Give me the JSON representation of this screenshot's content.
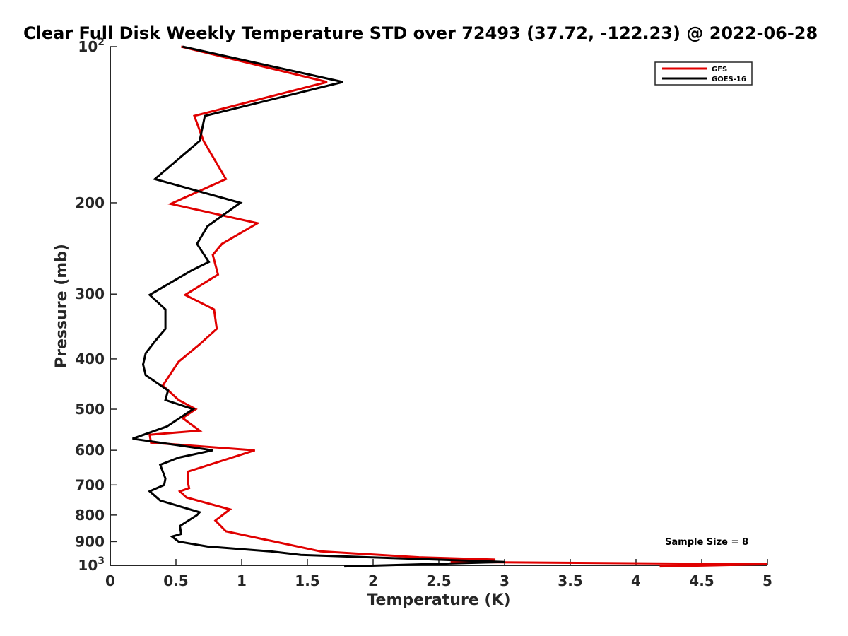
{
  "chart_data": {
    "type": "line",
    "title": "Clear Full Disk Weekly Temperature STD over 72493 (37.72, -122.23) @ 2022-06-28",
    "xlabel": "Temperature (K)",
    "ylabel": "Pressure (mb)",
    "xlim": [
      0,
      5
    ],
    "ylim": [
      100,
      1000
    ],
    "y_scale": "log",
    "y_reversed": true,
    "grid": false,
    "legend_position": "top-right",
    "x_ticks": [
      0,
      0.5,
      1,
      1.5,
      2,
      2.5,
      3,
      3.5,
      4,
      4.5,
      5
    ],
    "x_tick_labels": [
      "0",
      "0.5",
      "1",
      "1.5",
      "2",
      "2.5",
      "3",
      "3.5",
      "4",
      "4.5",
      "5"
    ],
    "y_ticks": [
      100,
      200,
      300,
      400,
      500,
      600,
      700,
      800,
      900,
      1000
    ],
    "y_tick_labels": [
      "10^2",
      "200",
      "300",
      "400",
      "500",
      "600",
      "700",
      "800",
      "900",
      "10^3"
    ],
    "annotation": "Sample Size = 8",
    "series": [
      {
        "name": "GFS",
        "color": "#e00000",
        "x": [
          0.54,
          1.65,
          0.64,
          0.71,
          0.88,
          0.46,
          1.12,
          0.85,
          0.78,
          0.82,
          0.57,
          0.79,
          0.81,
          0.68,
          0.52,
          0.4,
          0.52,
          0.65,
          0.55,
          0.68,
          0.3,
          0.31,
          1.1,
          0.59,
          0.59,
          0.6,
          0.53,
          0.58,
          0.91,
          0.8,
          0.88,
          1.25,
          1.6,
          2.35,
          2.93,
          2.59,
          5.0,
          4.18
        ],
        "y": [
          100,
          117,
          136,
          152,
          180,
          201,
          219,
          240,
          252,
          275,
          301,
          321,
          350,
          375,
          405,
          450,
          480,
          500,
          520,
          550,
          560,
          580,
          600,
          660,
          690,
          710,
          720,
          740,
          780,
          820,
          860,
          900,
          940,
          965,
          975,
          985,
          995,
          1005
        ]
      },
      {
        "name": "GOES-16",
        "color": "#000000",
        "x": [
          0.55,
          1.77,
          0.72,
          0.68,
          0.34,
          0.99,
          0.74,
          0.66,
          0.75,
          0.62,
          0.3,
          0.42,
          0.42,
          0.34,
          0.27,
          0.25,
          0.27,
          0.44,
          0.42,
          0.63,
          0.43,
          0.17,
          0.78,
          0.52,
          0.38,
          0.42,
          0.41,
          0.3,
          0.38,
          0.68,
          0.66,
          0.53,
          0.54,
          0.47,
          0.52,
          0.74,
          1.22,
          1.45,
          3.0,
          1.78
        ],
        "y": [
          100,
          117,
          136,
          152,
          180,
          200,
          222,
          240,
          260,
          270,
          301,
          321,
          350,
          370,
          390,
          410,
          430,
          460,
          480,
          500,
          540,
          570,
          600,
          620,
          640,
          680,
          700,
          720,
          750,
          790,
          800,
          840,
          870,
          880,
          900,
          920,
          940,
          955,
          985,
          1005
        ]
      }
    ]
  }
}
